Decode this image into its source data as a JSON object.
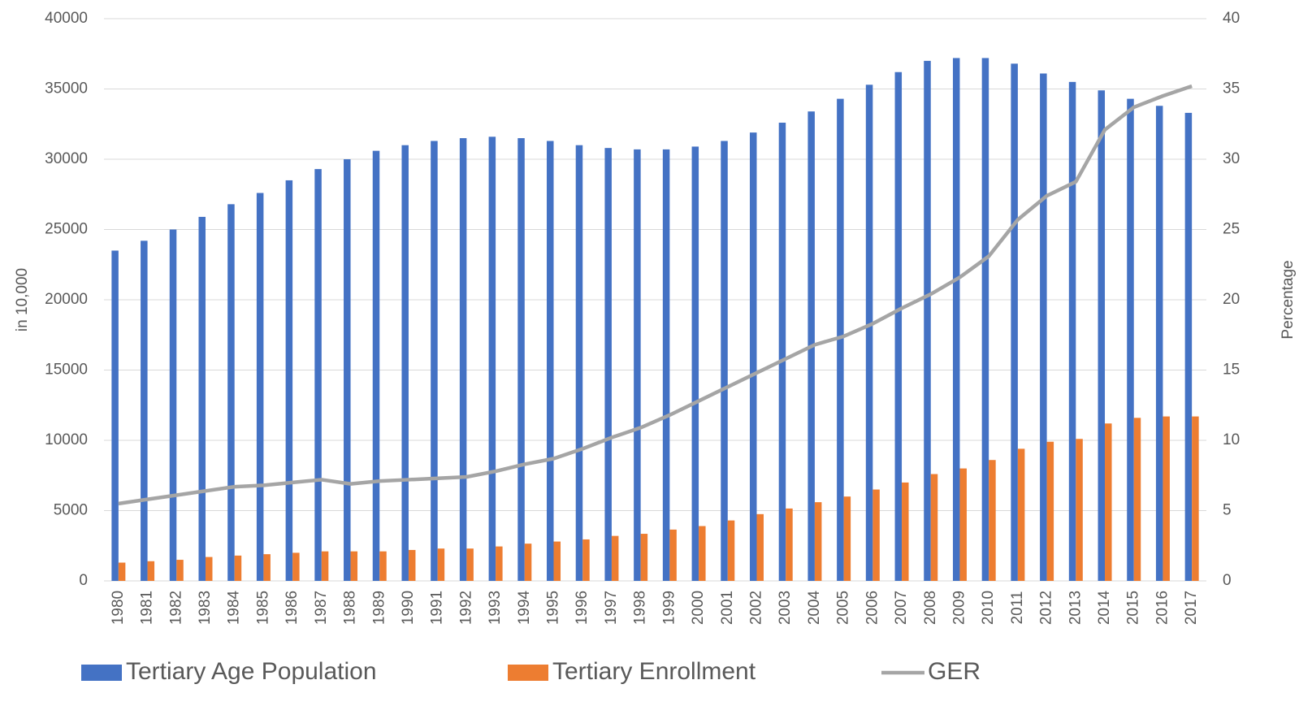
{
  "chart_data": {
    "type": "bar_line",
    "categories": [
      "1980",
      "1981",
      "1982",
      "1983",
      "1984",
      "1985",
      "1986",
      "1987",
      "1988",
      "1989",
      "1990",
      "1991",
      "1992",
      "1993",
      "1994",
      "1995",
      "1996",
      "1997",
      "1998",
      "1999",
      "2000",
      "2001",
      "2002",
      "2003",
      "2004",
      "2005",
      "2006",
      "2007",
      "2008",
      "2009",
      "2010",
      "2011",
      "2012",
      "2013",
      "2014",
      "2015",
      "2016",
      "2017"
    ],
    "y_label": "in 10,000",
    "y2_label": "Percentage",
    "ylim": [
      0,
      40000
    ],
    "yticks": [
      0,
      5000,
      10000,
      15000,
      20000,
      25000,
      30000,
      35000,
      40000
    ],
    "y2lim": [
      0,
      40
    ],
    "y2ticks": [
      0,
      5,
      10,
      15,
      20,
      25,
      30,
      35,
      40
    ],
    "grid": true,
    "legend": "bottom",
    "series": [
      {
        "name": "Tertiary Age Population",
        "type": "bar",
        "color": "#4472c4",
        "values": [
          23500,
          24200,
          25000,
          25900,
          26800,
          27600,
          28500,
          29300,
          30000,
          30600,
          31000,
          31300,
          31500,
          31600,
          31500,
          31300,
          31000,
          30800,
          30700,
          30700,
          30900,
          31300,
          31900,
          32600,
          33400,
          34300,
          35300,
          36200,
          37000,
          37200,
          37200,
          36800,
          36100,
          35500,
          34900,
          34300,
          33800,
          33300
        ]
      },
      {
        "name": "Tertiary Enrollment",
        "type": "bar",
        "color": "#ed7d31",
        "values": [
          1300,
          1400,
          1500,
          1700,
          1800,
          1900,
          2000,
          2100,
          2100,
          2100,
          2200,
          2300,
          2300,
          2450,
          2650,
          2800,
          2950,
          3200,
          3350,
          3650,
          3900,
          4300,
          4750,
          5150,
          5600,
          6000,
          6500,
          7000,
          7600,
          8000,
          8600,
          9400,
          9900,
          10100,
          11200,
          11600,
          11700,
          11700
        ]
      },
      {
        "name": "GER",
        "type": "line",
        "axis": "y2",
        "color": "#a5a5a5",
        "values": [
          5.5,
          5.8,
          6.1,
          6.4,
          6.7,
          6.8,
          7.0,
          7.2,
          6.9,
          7.1,
          7.2,
          7.3,
          7.4,
          7.8,
          8.3,
          8.7,
          9.4,
          10.2,
          10.9,
          11.8,
          12.8,
          13.8,
          14.8,
          15.8,
          16.8,
          17.4,
          18.3,
          19.4,
          20.4,
          21.6,
          23.1,
          25.7,
          27.4,
          28.4,
          32.1,
          33.7,
          34.5,
          35.2
        ]
      }
    ]
  }
}
